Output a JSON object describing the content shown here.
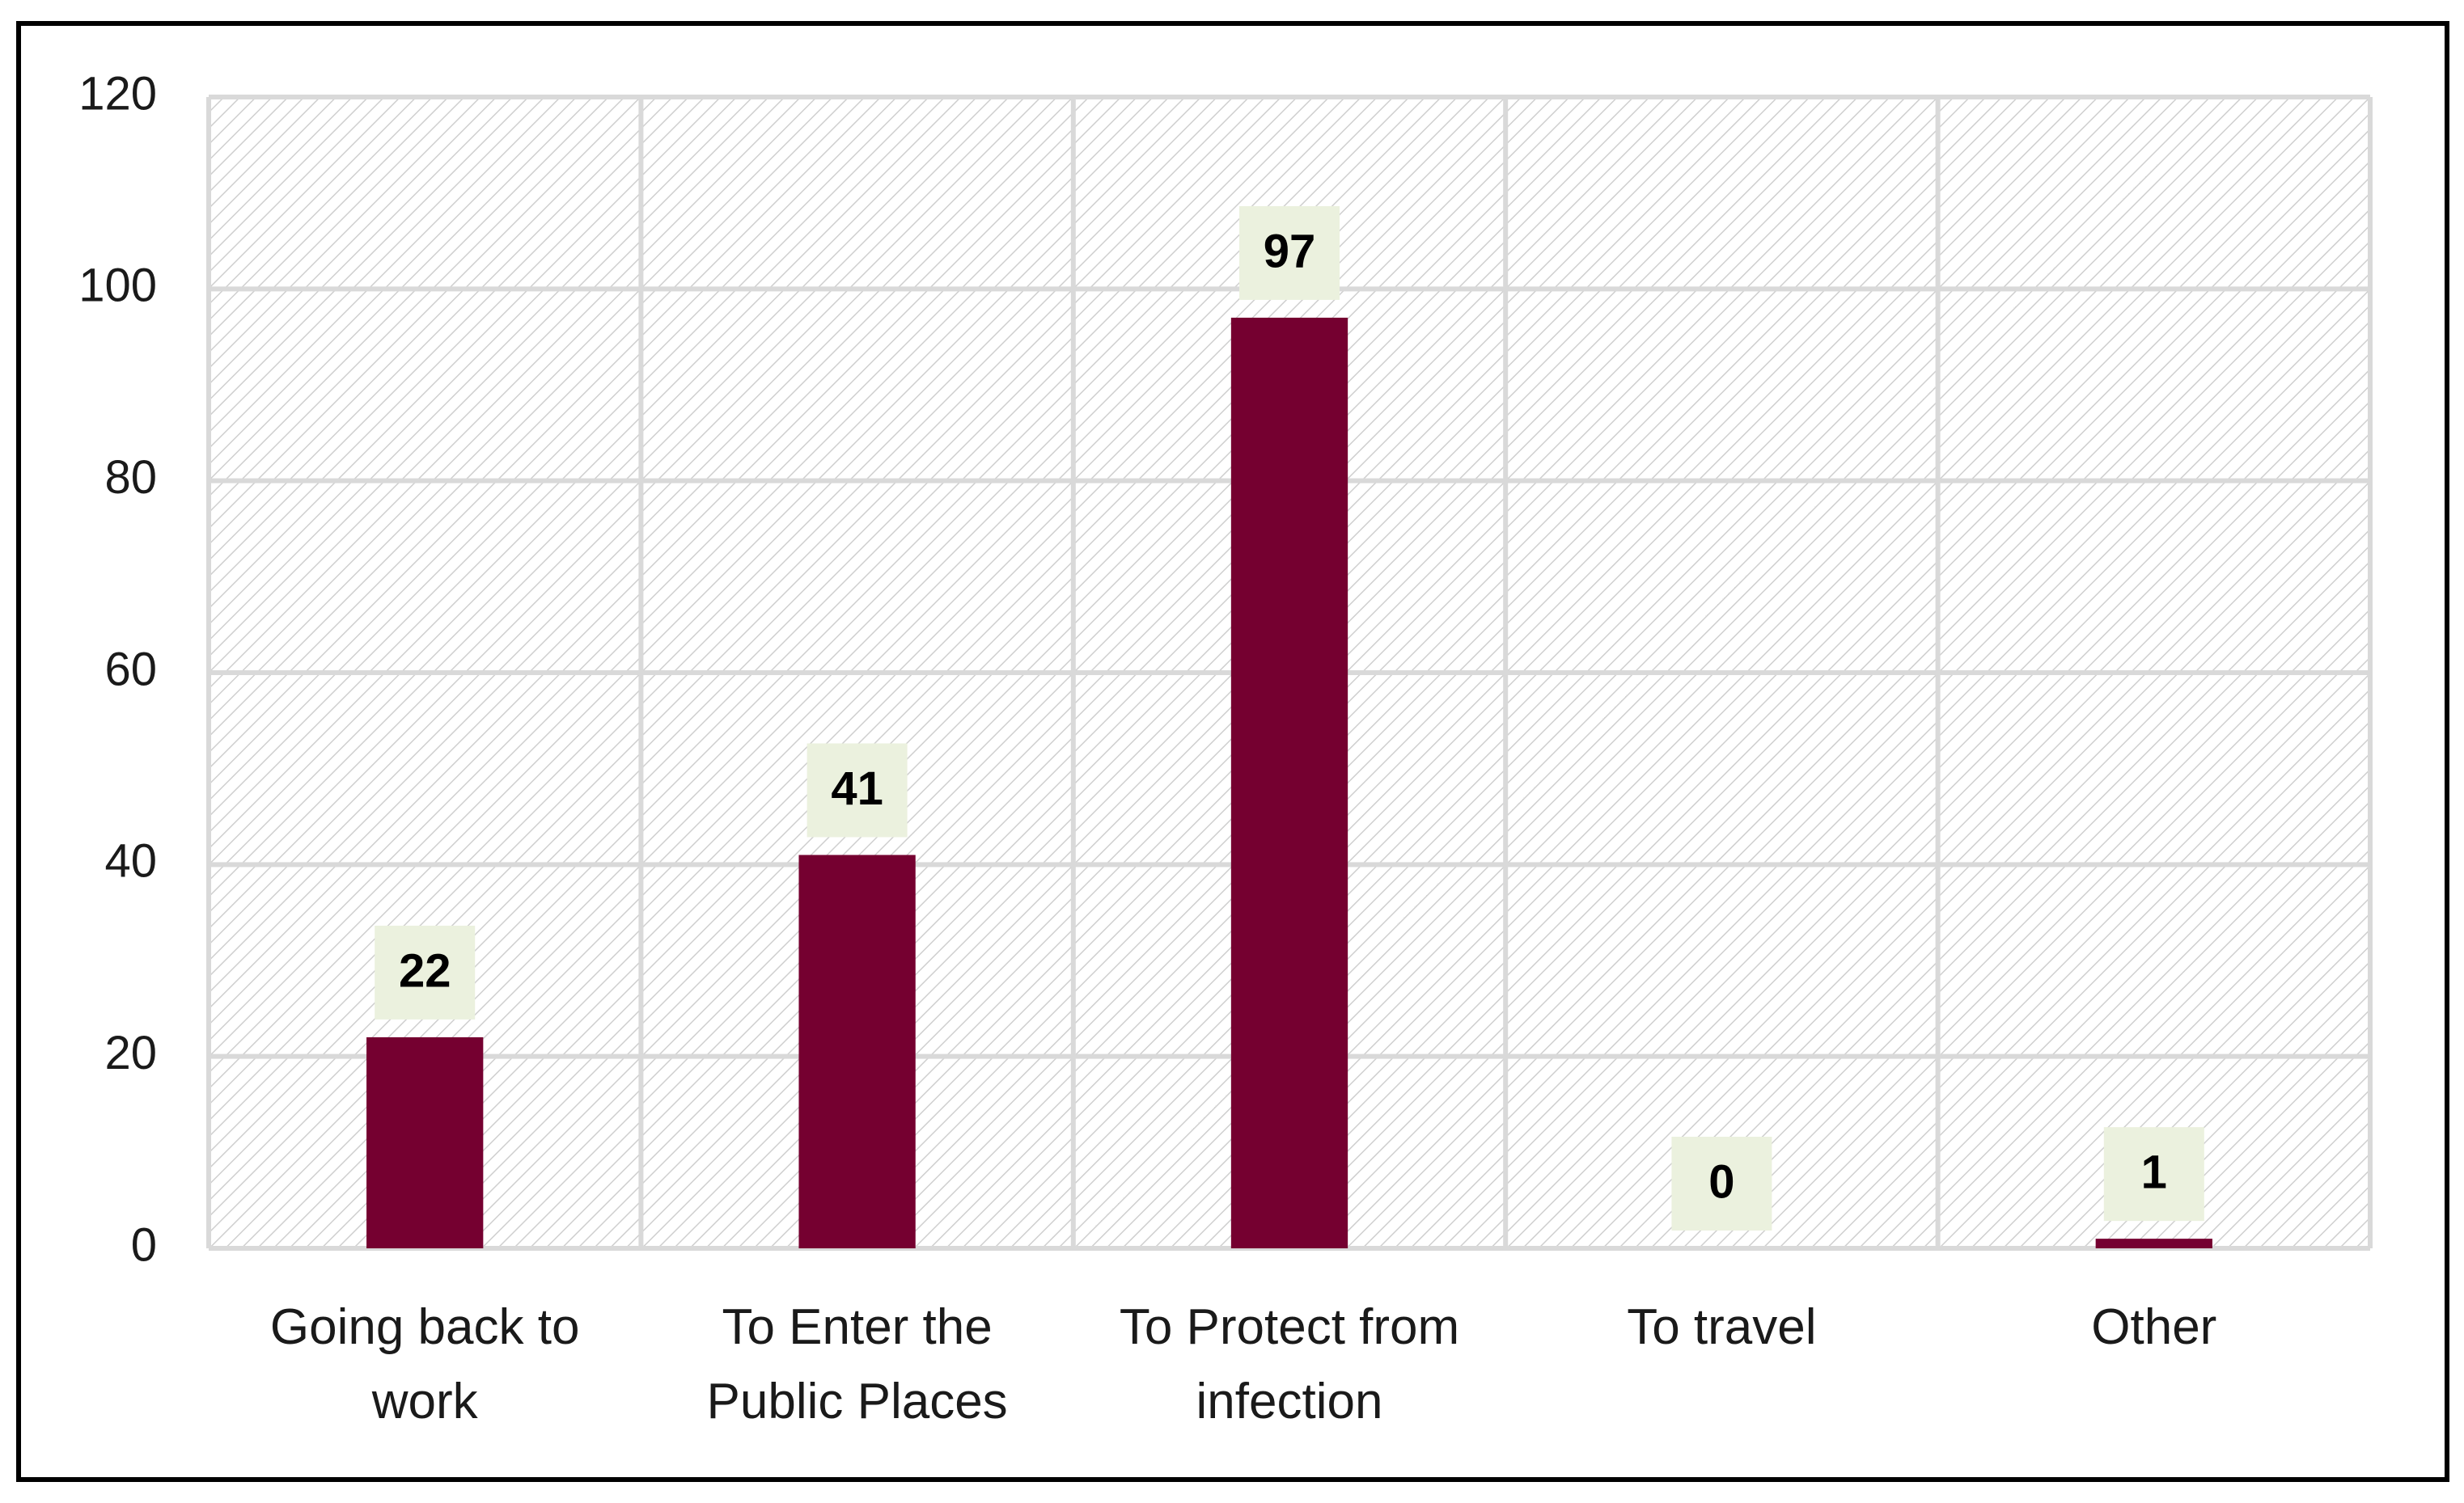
{
  "chart_data": {
    "type": "bar",
    "categories": [
      "Going back to work",
      "To Enter the Public Places",
      "To Protect from infection",
      "To travel",
      "Other"
    ],
    "values": [
      22,
      41,
      97,
      0,
      1
    ],
    "color": "#750030",
    "ylim": [
      0,
      120
    ],
    "yticks": [
      0,
      20,
      40,
      60,
      80,
      100,
      120
    ],
    "grid": true
  }
}
